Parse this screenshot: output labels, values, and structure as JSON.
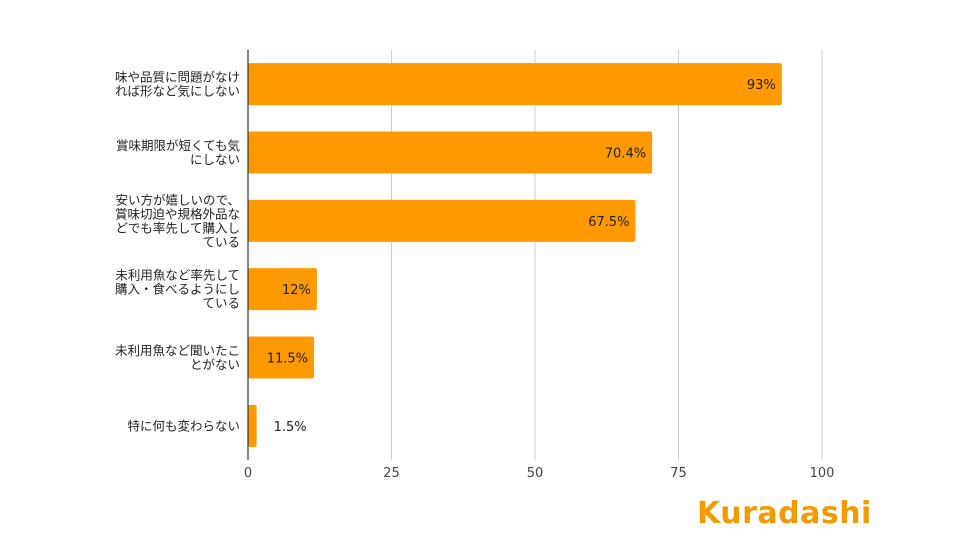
{
  "chart_data": {
    "type": "bar",
    "orientation": "horizontal",
    "categories": [
      [
        "味や品質に問題がなけ",
        "れば形など気にしない"
      ],
      [
        "賞味期限が短くても気",
        "にしない"
      ],
      [
        "安い方が嬉しいので、",
        "賞味切迫や規格外品な",
        "どでも率先して購入し",
        "ている"
      ],
      [
        "未利用魚など率先して",
        "購入・食べるようにし",
        "ている"
      ],
      [
        "未利用魚など聞いたこ",
        "とがない"
      ],
      [
        "特に何も変わらない"
      ]
    ],
    "values": [
      93,
      70.4,
      67.5,
      12,
      11.5,
      1.5
    ],
    "data_labels": [
      "93%",
      "70.4%",
      "67.5%",
      "12%",
      "11.5%",
      "1.5%"
    ],
    "xticks": [
      "0",
      "25",
      "50",
      "75",
      "100"
    ],
    "xlim": [
      0,
      100
    ],
    "grid": true,
    "bar_color": "#ff9900",
    "title": "",
    "xlabel": "",
    "ylabel": ""
  },
  "logo": {
    "text": "Kuradashi",
    "color": "#f39a00"
  }
}
